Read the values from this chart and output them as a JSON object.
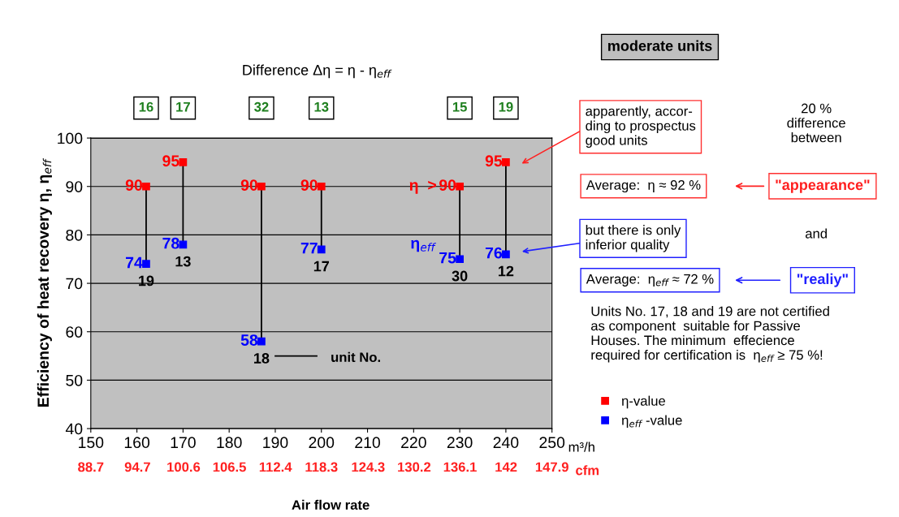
{
  "chart_data": {
    "type": "scatter",
    "title": "Difference Δη = η - η$_{eff}$",
    "xlabel": "Air flow rate",
    "ylabel": "Efficiency of heat recovery η, η$_{eff}$",
    "x2label": "cfm",
    "x": [
      162,
      170,
      187,
      200,
      230,
      240
    ],
    "series": [
      {
        "name": "η-value",
        "color": "#ff0000",
        "values": [
          90,
          95,
          90,
          90,
          90,
          95
        ]
      },
      {
        "name": "η$_{eff}$ -value",
        "color": "#0000ff",
        "values": [
          74,
          78,
          58,
          77,
          75,
          76
        ]
      }
    ],
    "xlim": [
      150,
      250
    ],
    "xticks": [
      150,
      160,
      170,
      180,
      190,
      200,
      210,
      220,
      230,
      240,
      250
    ],
    "ylim": [
      40,
      100
    ],
    "yticks": [
      40,
      50,
      60,
      70,
      80,
      90,
      100
    ],
    "x2lim": [
      88.7,
      147.9
    ],
    "x2ticks": [
      88.7,
      94.7,
      100.6,
      106.5,
      112.4,
      118.3,
      124.3,
      130.2,
      136.1,
      142,
      147.9
    ],
    "grid": "y",
    "marker": "square",
    "data_labels": true,
    "legend": "right",
    "annotations": [
      "16",
      "17",
      "32",
      "13",
      "15",
      "19",
      {
        "text": "19",
        "x": 162,
        "y": 74
      },
      {
        "text": "13",
        "x": 170,
        "y": 78
      },
      {
        "text": "18",
        "x": 187,
        "y": 58
      },
      {
        "text": "17",
        "x": 200,
        "y": 77
      },
      {
        "text": "30",
        "x": 230,
        "y": 75
      },
      {
        "text": "12",
        "x": 240,
        "y": 76
      },
      "η  >",
      "η$_{eff}$",
      "unit No.",
      "m³/h",
      "moderate units",
      "apparently, accor-\nding to prospectus\ngood units",
      "Average:  η ≈ 92 %",
      "20 %\ndifference\nbetween",
      "\"appearance\"",
      "but there is only\ninferior quality",
      "and",
      "Average:  η$_{eff}$ ≈ 72 %",
      "\"realiy\"",
      "Units No. 17, 18 and 19 are not certified\nas component  suitable for Passive\nHouses. The minimum  effecience\nrequired for certification is  η$_{eff}$ ≥ 75 %!"
    ]
  }
}
